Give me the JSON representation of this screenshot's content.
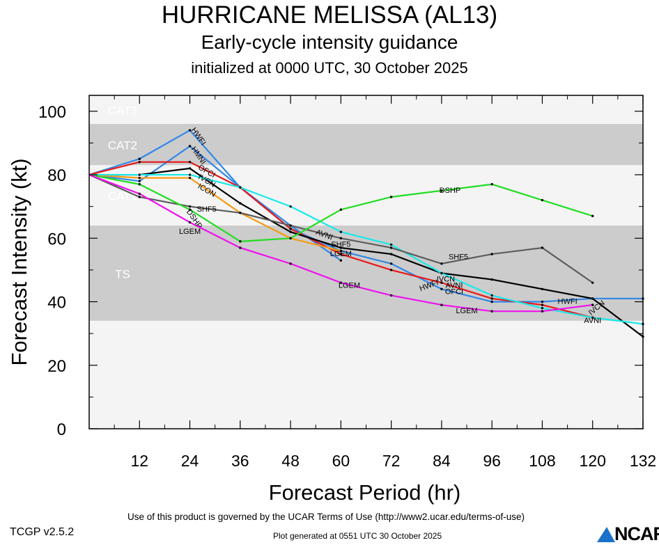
{
  "header": {
    "title": "HURRICANE MELISSA (AL13)",
    "subtitle": "Early-cycle intensity guidance",
    "init": "initialized at 0000 UTC, 30 October 2025"
  },
  "footer": {
    "version": "TCGP v2.5.2",
    "terms": "Use of this product is governed by the UCAR Terms of Use (http://www2.ucar.edu/terms-of-use)",
    "generated": "Plot generated at 0551 UTC   30 October 2025",
    "logo": "NCAR"
  },
  "chart_data": {
    "type": "line",
    "xlabel": "Forecast Period (hr)",
    "ylabel": "Forecast Intensity (kt)",
    "xlim": [
      0,
      132
    ],
    "ylim": [
      0,
      105
    ],
    "xticks": [
      12,
      24,
      36,
      48,
      60,
      72,
      84,
      96,
      108,
      120,
      132
    ],
    "yticks": [
      0,
      20,
      40,
      60,
      80,
      100
    ],
    "bands": [
      {
        "label": "CAT3",
        "from": 96,
        "to": 105,
        "color": "#f4f4f4"
      },
      {
        "label": "CAT2",
        "from": 83,
        "to": 96,
        "color": "#cccccc"
      },
      {
        "label": "CAT1",
        "from": 64,
        "to": 83,
        "color": "#f4f4f4"
      },
      {
        "label": "TS",
        "from": 34,
        "to": 64,
        "color": "#cccccc"
      },
      {
        "label": "",
        "from": 0,
        "to": 34,
        "color": "#f4f4f4"
      }
    ],
    "series": [
      {
        "name": "HWFI",
        "color": "#2f87e8",
        "x": [
          0,
          12,
          24,
          36,
          48,
          60,
          72,
          84,
          96,
          108,
          120,
          132
        ],
        "y": [
          80,
          85,
          94,
          76,
          63,
          56,
          52,
          44,
          40,
          40,
          41,
          41
        ]
      },
      {
        "name": "HMNI",
        "color": "#2f87e8",
        "x": [
          0,
          12,
          24,
          36,
          48,
          60
        ],
        "y": [
          80,
          78,
          89,
          76,
          64,
          53
        ]
      },
      {
        "name": "OFCI",
        "color": "#e81818",
        "x": [
          0,
          12,
          24,
          36,
          48,
          60,
          72,
          84,
          96,
          108,
          120
        ],
        "y": [
          80,
          84,
          84,
          76,
          63,
          55,
          50,
          46,
          41,
          39,
          35
        ]
      },
      {
        "name": "IVCN",
        "color": "#000000",
        "x": [
          0,
          12,
          24,
          36,
          48,
          60,
          72,
          84,
          96,
          108,
          120,
          132
        ],
        "y": [
          80,
          80,
          82,
          71,
          62,
          57,
          55,
          49,
          47,
          44,
          41,
          29
        ]
      },
      {
        "name": "ICON",
        "color": "#f59a12",
        "x": [
          0,
          12,
          24,
          36,
          48,
          60
        ],
        "y": [
          80,
          79,
          79,
          68,
          60,
          56
        ]
      },
      {
        "name": "AVNI",
        "color": "#19e8e8",
        "x": [
          0,
          12,
          24,
          36,
          48,
          60,
          72,
          84,
          96,
          108,
          120,
          132
        ],
        "y": [
          80,
          80,
          80,
          76,
          70,
          62,
          58,
          49,
          42,
          38,
          35,
          33
        ]
      },
      {
        "name": "SHF5",
        "color": "#5c5c5c",
        "x": [
          0,
          12,
          24,
          36,
          48,
          60,
          72,
          84,
          96,
          108,
          120
        ],
        "y": [
          80,
          73,
          70,
          68,
          64,
          60,
          57,
          52,
          55,
          57,
          46
        ]
      },
      {
        "name": "DSHP",
        "color": "#22dd22",
        "x": [
          0,
          12,
          24,
          36,
          48,
          60,
          72,
          84,
          96,
          108,
          120
        ],
        "y": [
          80,
          77,
          69,
          59,
          60,
          69,
          73,
          75,
          77,
          72,
          67
        ]
      },
      {
        "name": "LGEM",
        "color": "#ee11ee",
        "x": [
          0,
          12,
          24,
          36,
          48,
          60,
          72,
          84,
          96,
          108,
          120
        ],
        "y": [
          80,
          74,
          65,
          57,
          52,
          46,
          42,
          39,
          37,
          37,
          39
        ]
      }
    ],
    "point_labels": [
      {
        "text": "HWFI",
        "color": "#000000",
        "x": 26,
        "y": 92,
        "angle": 55
      },
      {
        "text": "HMNI",
        "color": "#000000",
        "x": 26,
        "y": 86,
        "angle": 55
      },
      {
        "text": "OFCI",
        "color": "#000000",
        "x": 28,
        "y": 81,
        "angle": 30
      },
      {
        "text": "IVCN",
        "color": "#000000",
        "x": 28,
        "y": 78,
        "angle": 30
      },
      {
        "text": "ICON",
        "color": "#000000",
        "x": 28,
        "y": 75,
        "angle": 30
      },
      {
        "text": "SHF5",
        "color": "#000000",
        "x": 28,
        "y": 69,
        "angle": 0
      },
      {
        "text": "DSHP",
        "color": "#000000",
        "x": 25,
        "y": 66,
        "angle": 55
      },
      {
        "text": "LGEM",
        "color": "#000000",
        "x": 24,
        "y": 62,
        "angle": 0
      },
      {
        "text": "AVNI",
        "color": "#000000",
        "x": 56,
        "y": 61,
        "angle": 20
      },
      {
        "text": "SHF5",
        "color": "#000000",
        "x": 60,
        "y": 58,
        "angle": 0
      },
      {
        "text": "LGEM",
        "color": "#000000",
        "x": 62,
        "y": 45,
        "angle": 0
      },
      {
        "text": "SHF5",
        "color": "#000000",
        "x": 88,
        "y": 54,
        "angle": 0
      },
      {
        "text": "IVCN",
        "color": "#000000",
        "x": 85,
        "y": 47,
        "angle": 0
      },
      {
        "text": "AVNI",
        "color": "#000000",
        "x": 87,
        "y": 45,
        "angle": 0
      },
      {
        "text": "HWFI",
        "color": "#000000",
        "x": 81,
        "y": 45,
        "angle": -20
      },
      {
        "text": "OFCI",
        "color": "#000000",
        "x": 87,
        "y": 43,
        "angle": 0
      },
      {
        "text": "LGEM",
        "color": "#000000",
        "x": 90,
        "y": 37,
        "angle": 0
      },
      {
        "text": "HWFI",
        "color": "#000000",
        "x": 114,
        "y": 40,
        "angle": 0
      },
      {
        "text": "IVCN",
        "color": "#000000",
        "x": 121,
        "y": 38,
        "angle": -40
      },
      {
        "text": "AVNI",
        "color": "#000000",
        "x": 120,
        "y": 34,
        "angle": 0
      },
      {
        "text": "DSHP",
        "color": "#000000",
        "x": 86,
        "y": 75,
        "angle": 0
      },
      {
        "text": "LGEM",
        "color": "#000000",
        "x": 60,
        "y": 55,
        "angle": 0
      }
    ]
  }
}
